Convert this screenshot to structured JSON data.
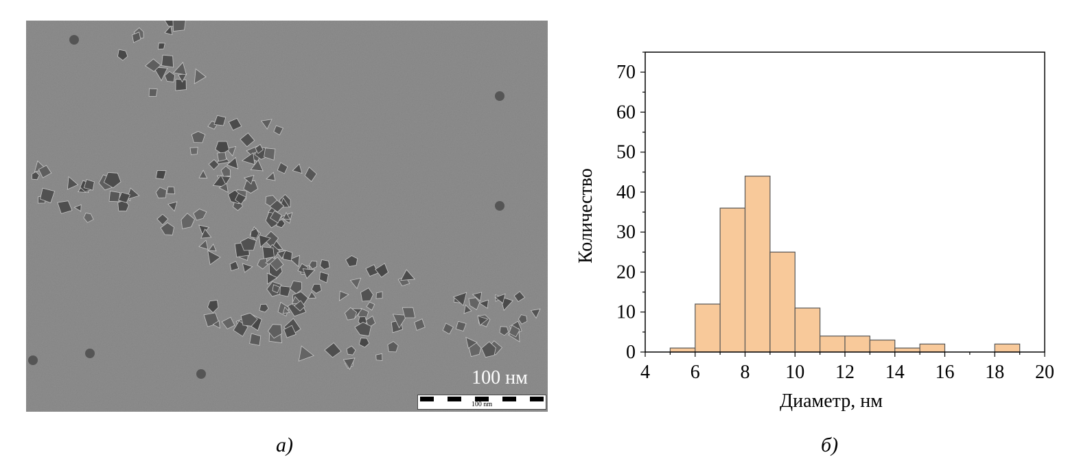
{
  "panel_a": {
    "caption": "а)",
    "image_description_icon": "tem-micrograph-nanoparticles",
    "scale_label": "100 нм",
    "scalebar_text": "100 nm"
  },
  "panel_b": {
    "caption": "б)"
  },
  "chart_data": {
    "type": "bar",
    "subtype": "histogram",
    "bin_width": 1,
    "bins": [
      {
        "x0": 5,
        "x1": 6,
        "value": 1
      },
      {
        "x0": 6,
        "x1": 7,
        "value": 12
      },
      {
        "x0": 7,
        "x1": 8,
        "value": 36
      },
      {
        "x0": 8,
        "x1": 9,
        "value": 44
      },
      {
        "x0": 9,
        "x1": 10,
        "value": 25
      },
      {
        "x0": 10,
        "x1": 11,
        "value": 11
      },
      {
        "x0": 11,
        "x1": 12,
        "value": 4
      },
      {
        "x0": 12,
        "x1": 13,
        "value": 4
      },
      {
        "x0": 13,
        "x1": 14,
        "value": 3
      },
      {
        "x0": 14,
        "x1": 15,
        "value": 1
      },
      {
        "x0": 15,
        "x1": 16,
        "value": 2
      },
      {
        "x0": 16,
        "x1": 17,
        "value": 0
      },
      {
        "x0": 17,
        "x1": 18,
        "value": 0
      },
      {
        "x0": 18,
        "x1": 19,
        "value": 2
      }
    ],
    "xlabel": "Диаметр, нм",
    "ylabel": "Количество",
    "xlim": [
      4,
      20
    ],
    "ylim": [
      0,
      75
    ],
    "xticks": [
      4,
      6,
      8,
      10,
      12,
      14,
      16,
      18,
      20
    ],
    "yticks": [
      0,
      10,
      20,
      30,
      40,
      50,
      60,
      70
    ],
    "grid": false,
    "bar_color": "#f8c99a",
    "bar_edge_color": "#555555"
  }
}
